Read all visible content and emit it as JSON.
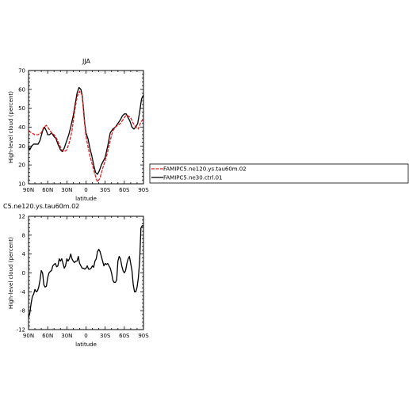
{
  "chart_data": [
    {
      "type": "line",
      "title": "JJA",
      "xlabel": "latitude",
      "ylabel": "High-level cloud (percent)",
      "xlim": [
        90,
        -90
      ],
      "ylim": [
        10,
        70
      ],
      "xticks": [
        90,
        60,
        30,
        0,
        -30,
        -60,
        -90
      ],
      "xticklabels": [
        "90N",
        "60N",
        "30N",
        "0",
        "30S",
        "60S",
        "90S"
      ],
      "yticks": [
        10,
        20,
        30,
        40,
        50,
        60,
        70
      ],
      "yticklabels": [
        "10",
        "20",
        "30",
        "40",
        "50",
        "60",
        "70"
      ],
      "legend": "right",
      "series": [
        {
          "name": "FAMIPC5.ne120.ys.tau60m.02",
          "color": "#e41a1c",
          "dash": "dashed",
          "x": [
            90,
            85,
            80,
            75,
            70,
            66,
            62,
            58,
            54,
            50,
            46,
            42,
            38,
            34,
            30,
            26,
            22,
            18,
            14,
            10,
            6,
            3,
            0,
            -3,
            -6,
            -10,
            -14,
            -18,
            -22,
            -26,
            -30,
            -34,
            -38,
            -42,
            -46,
            -50,
            -54,
            -58,
            -62,
            -66,
            -70,
            -74,
            -78,
            -82,
            -86,
            -90
          ],
          "y": [
            38,
            37,
            36,
            36,
            37,
            40,
            41,
            39,
            37,
            36,
            34,
            31,
            28,
            27,
            28,
            32,
            38,
            48,
            56,
            59,
            57,
            45,
            35,
            30,
            25,
            20,
            15,
            11,
            13,
            18,
            22,
            27,
            33,
            38,
            40,
            41,
            42,
            44,
            46,
            46,
            45,
            42,
            40,
            39,
            43,
            44
          ]
        },
        {
          "name": "FAMIPC5.ne30.ctrl.01",
          "color": "#000000",
          "dash": "solid",
          "x": [
            90,
            88,
            85,
            82,
            78,
            75,
            72,
            68,
            65,
            62,
            60,
            57,
            54,
            50,
            47,
            44,
            40,
            37,
            34,
            30,
            27,
            24,
            20,
            17,
            14,
            11,
            8,
            6,
            4,
            2,
            0,
            -3,
            -6,
            -9,
            -12,
            -15,
            -18,
            -21,
            -24,
            -27,
            -30,
            -34,
            -38,
            -42,
            -46,
            -50,
            -54,
            -57,
            -60,
            -63,
            -66,
            -69,
            -72,
            -75,
            -78,
            -81,
            -84,
            -87,
            -90
          ],
          "y": [
            30,
            28,
            30,
            31,
            31,
            31,
            33,
            38,
            40,
            38,
            36,
            36,
            37,
            35,
            34,
            31,
            28,
            27,
            29,
            33,
            36,
            40,
            46,
            52,
            58,
            61,
            60,
            57,
            50,
            42,
            37,
            34,
            29,
            25,
            20,
            16,
            15,
            17,
            20,
            22,
            24,
            30,
            37,
            39,
            40,
            42,
            44,
            46,
            47,
            47,
            45,
            43,
            40,
            39,
            40,
            42,
            48,
            55,
            57
          ]
        }
      ]
    },
    {
      "type": "line",
      "title": "C5.ne120.ys.tau60m.02",
      "xlabel": "latitude",
      "ylabel": "High-level cloud (percent)",
      "xlim": [
        90,
        -90
      ],
      "ylim": [
        -12,
        12
      ],
      "xticks": [
        90,
        60,
        30,
        0,
        -30,
        -60,
        -90
      ],
      "xticklabels": [
        "90N",
        "60N",
        "30N",
        "0",
        "30S",
        "60S",
        "90S"
      ],
      "yticks": [
        -12,
        -8,
        -4,
        0,
        4,
        8,
        12
      ],
      "yticklabels": [
        "-12",
        "-8",
        "-4",
        "0",
        "4",
        "8",
        "12"
      ],
      "series": [
        {
          "color": "#000000",
          "dash": "solid",
          "x": [
            90,
            88,
            86,
            84,
            82,
            80,
            78,
            76,
            74,
            72,
            70,
            68,
            66,
            64,
            62,
            60,
            58,
            56,
            54,
            52,
            50,
            48,
            46,
            44,
            42,
            40,
            38,
            36,
            34,
            32,
            30,
            28,
            26,
            24,
            22,
            20,
            18,
            16,
            14,
            12,
            10,
            8,
            6,
            4,
            2,
            0,
            -2,
            -4,
            -6,
            -8,
            -10,
            -12,
            -14,
            -16,
            -18,
            -20,
            -22,
            -24,
            -26,
            -28,
            -30,
            -32,
            -34,
            -36,
            -38,
            -40,
            -42,
            -44,
            -46,
            -48,
            -50,
            -52,
            -54,
            -56,
            -58,
            -60,
            -62,
            -64,
            -66,
            -68,
            -70,
            -72,
            -74,
            -76,
            -78,
            -80,
            -82,
            -84,
            -86,
            -88,
            -90
          ],
          "y": [
            -9.5,
            -8.5,
            -6.5,
            -5,
            -4.5,
            -3.5,
            -4,
            -3.8,
            -3,
            -1.5,
            0.5,
            0,
            -2.5,
            -3,
            -2.8,
            -1,
            0,
            0.3,
            0.5,
            1.5,
            1.8,
            2,
            1.3,
            1.5,
            3,
            2.5,
            3,
            2,
            1,
            1.5,
            3,
            2.5,
            3,
            4,
            3,
            2.5,
            2.2,
            2.5,
            2.5,
            3.5,
            2,
            1.5,
            1,
            1,
            0.8,
            1,
            1.5,
            0.8,
            0.8,
            1,
            1.5,
            1.2,
            2.5,
            3,
            4.5,
            5,
            4.5,
            3.5,
            2.5,
            1.5,
            2,
            1.8,
            2,
            1.5,
            1,
            0,
            -1.5,
            -2,
            -2,
            -1.5,
            2.5,
            3.5,
            3,
            1.5,
            0.5,
            0,
            0.5,
            2,
            3,
            3.5,
            2,
            0.5,
            -2.5,
            -4,
            -4,
            -3,
            -1,
            2.5,
            9.5,
            10,
            10
          ]
        }
      ]
    }
  ]
}
